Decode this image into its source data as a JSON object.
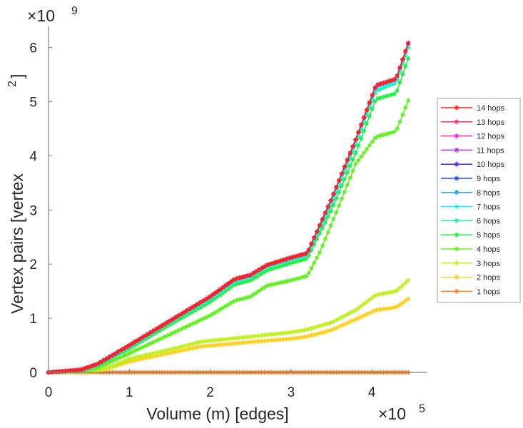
{
  "chart_data": {
    "type": "line",
    "title": "",
    "xlabel": "Volume (m) [edges]",
    "ylabel": "Vertex pairs [vertex",
    "ylabel_superscript": "2",
    "ylabel_close": "]",
    "x_multiplier": "×10",
    "x_multiplier_exp": "5",
    "y_multiplier": "×10",
    "y_multiplier_exp": "9",
    "xlim": [
      0,
      4.7
    ],
    "ylim": [
      0,
      6.4
    ],
    "xticks": [
      "0",
      "1",
      "2",
      "3",
      "4"
    ],
    "yticks": [
      "0",
      "1",
      "2",
      "3",
      "4",
      "5",
      "6"
    ],
    "grid": false,
    "legend_position": "right",
    "series": [
      {
        "name": "14 hops",
        "color": "#ff2020",
        "x": [
          0,
          0.4,
          0.6,
          1,
          1.5,
          2,
          2.3,
          2.5,
          2.7,
          3,
          3.2,
          3.5,
          3.8,
          4.05,
          4.3,
          4.45
        ],
        "y": [
          0,
          0.05,
          0.15,
          0.5,
          0.95,
          1.4,
          1.72,
          1.8,
          1.98,
          2.12,
          2.2,
          3.2,
          4.3,
          5.3,
          5.42,
          6.08
        ]
      },
      {
        "name": "13 hops",
        "color": "#ff3070",
        "x": [
          0,
          0.4,
          0.6,
          1,
          1.5,
          2,
          2.3,
          2.5,
          2.7,
          3,
          3.2,
          3.5,
          3.8,
          4.05,
          4.3,
          4.45
        ],
        "y": [
          0,
          0.05,
          0.15,
          0.5,
          0.95,
          1.4,
          1.72,
          1.8,
          1.98,
          2.12,
          2.2,
          3.2,
          4.3,
          5.3,
          5.42,
          6.08
        ]
      },
      {
        "name": "12 hops",
        "color": "#ff20d0",
        "x": [
          0,
          0.4,
          0.6,
          1,
          1.5,
          2,
          2.3,
          2.5,
          2.7,
          3,
          3.2,
          3.5,
          3.8,
          4.05,
          4.3,
          4.45
        ],
        "y": [
          0,
          0.05,
          0.15,
          0.5,
          0.95,
          1.4,
          1.72,
          1.8,
          1.98,
          2.12,
          2.2,
          3.2,
          4.3,
          5.3,
          5.42,
          6.08
        ]
      },
      {
        "name": "11 hops",
        "color": "#b030ff",
        "x": [
          0,
          0.4,
          0.6,
          1,
          1.5,
          2,
          2.3,
          2.5,
          2.7,
          3,
          3.2,
          3.5,
          3.8,
          4.05,
          4.3,
          4.45
        ],
        "y": [
          0,
          0.05,
          0.15,
          0.5,
          0.95,
          1.4,
          1.72,
          1.8,
          1.98,
          2.12,
          2.2,
          3.2,
          4.3,
          5.3,
          5.42,
          6.08
        ]
      },
      {
        "name": "10 hops",
        "color": "#5020ff",
        "x": [
          0,
          0.4,
          0.6,
          1,
          1.5,
          2,
          2.3,
          2.5,
          2.7,
          3,
          3.2,
          3.5,
          3.8,
          4.05,
          4.3,
          4.45
        ],
        "y": [
          0,
          0.05,
          0.15,
          0.5,
          0.95,
          1.4,
          1.72,
          1.8,
          1.98,
          2.12,
          2.2,
          3.2,
          4.3,
          5.3,
          5.42,
          6.08
        ]
      },
      {
        "name": "9 hops",
        "color": "#2050ff",
        "x": [
          0,
          0.4,
          0.6,
          1,
          1.5,
          2,
          2.3,
          2.5,
          2.7,
          3,
          3.2,
          3.5,
          3.8,
          4.05,
          4.3,
          4.45
        ],
        "y": [
          0,
          0.05,
          0.15,
          0.5,
          0.95,
          1.4,
          1.72,
          1.8,
          1.98,
          2.12,
          2.2,
          3.2,
          4.3,
          5.3,
          5.42,
          6.08
        ]
      },
      {
        "name": "8 hops",
        "color": "#20a0ff",
        "x": [
          0,
          0.4,
          0.6,
          1,
          1.5,
          2,
          2.3,
          2.5,
          2.7,
          3,
          3.2,
          3.5,
          3.8,
          4.05,
          4.3,
          4.45
        ],
        "y": [
          0,
          0.05,
          0.15,
          0.5,
          0.95,
          1.4,
          1.72,
          1.8,
          1.98,
          2.12,
          2.2,
          3.2,
          4.3,
          5.3,
          5.42,
          6.08
        ]
      },
      {
        "name": "7 hops",
        "color": "#20f0ff",
        "x": [
          0,
          0.4,
          0.6,
          1,
          1.5,
          2,
          2.3,
          2.5,
          2.7,
          3,
          3.2,
          3.5,
          3.8,
          4.05,
          4.3,
          4.45
        ],
        "y": [
          0,
          0.04,
          0.14,
          0.49,
          0.94,
          1.38,
          1.7,
          1.78,
          1.96,
          2.1,
          2.18,
          3.15,
          4.25,
          5.25,
          5.38,
          6.05
        ]
      },
      {
        "name": "6 hops",
        "color": "#20f0a0",
        "x": [
          0,
          0.4,
          0.6,
          1,
          1.5,
          2,
          2.3,
          2.5,
          2.7,
          3,
          3.2,
          3.5,
          3.8,
          4.05,
          4.3,
          4.45
        ],
        "y": [
          0,
          0.04,
          0.13,
          0.47,
          0.92,
          1.35,
          1.67,
          1.76,
          1.94,
          2.08,
          2.15,
          3.1,
          4.2,
          5.2,
          5.35,
          6.0
        ]
      },
      {
        "name": "5 hops",
        "color": "#20f040",
        "x": [
          0,
          0.4,
          0.6,
          1,
          1.5,
          2,
          2.3,
          2.5,
          2.7,
          3,
          3.2,
          3.5,
          3.8,
          4.05,
          4.3,
          4.45
        ],
        "y": [
          0,
          0.03,
          0.12,
          0.44,
          0.88,
          1.3,
          1.62,
          1.7,
          1.88,
          2.02,
          2.1,
          3.0,
          4.05,
          5.05,
          5.15,
          5.8
        ]
      },
      {
        "name": "4 hops",
        "color": "#60f020",
        "x": [
          0,
          0.4,
          0.6,
          1,
          1.5,
          2,
          2.3,
          2.5,
          2.7,
          3,
          3.2,
          3.35,
          3.6,
          3.8,
          4.05,
          4.3,
          4.45
        ],
        "y": [
          0,
          0.02,
          0.08,
          0.35,
          0.7,
          1.05,
          1.32,
          1.4,
          1.6,
          1.7,
          1.78,
          2.2,
          3.1,
          3.85,
          4.35,
          4.45,
          5.02
        ]
      },
      {
        "name": "3 hops",
        "color": "#c0f020",
        "x": [
          0,
          0.6,
          0.8,
          1,
          1.5,
          1.9,
          2.5,
          3,
          3.2,
          3.5,
          3.8,
          4.05,
          4.3,
          4.45
        ],
        "y": [
          0,
          0.03,
          0.12,
          0.25,
          0.42,
          0.57,
          0.66,
          0.74,
          0.79,
          0.92,
          1.15,
          1.43,
          1.5,
          1.7
        ]
      },
      {
        "name": "2 hops",
        "color": "#ffd020",
        "x": [
          0,
          0.6,
          0.8,
          1,
          1.5,
          1.9,
          2.5,
          3,
          3.2,
          3.5,
          3.8,
          4.05,
          4.3,
          4.45
        ],
        "y": [
          0,
          0.02,
          0.1,
          0.2,
          0.36,
          0.48,
          0.56,
          0.62,
          0.66,
          0.78,
          0.98,
          1.15,
          1.2,
          1.36
        ]
      },
      {
        "name": "1 hops",
        "color": "#ff8020",
        "x": [
          0,
          1,
          2,
          3,
          4,
          4.45
        ],
        "y": [
          0,
          0,
          0,
          0,
          0,
          0
        ]
      }
    ]
  }
}
